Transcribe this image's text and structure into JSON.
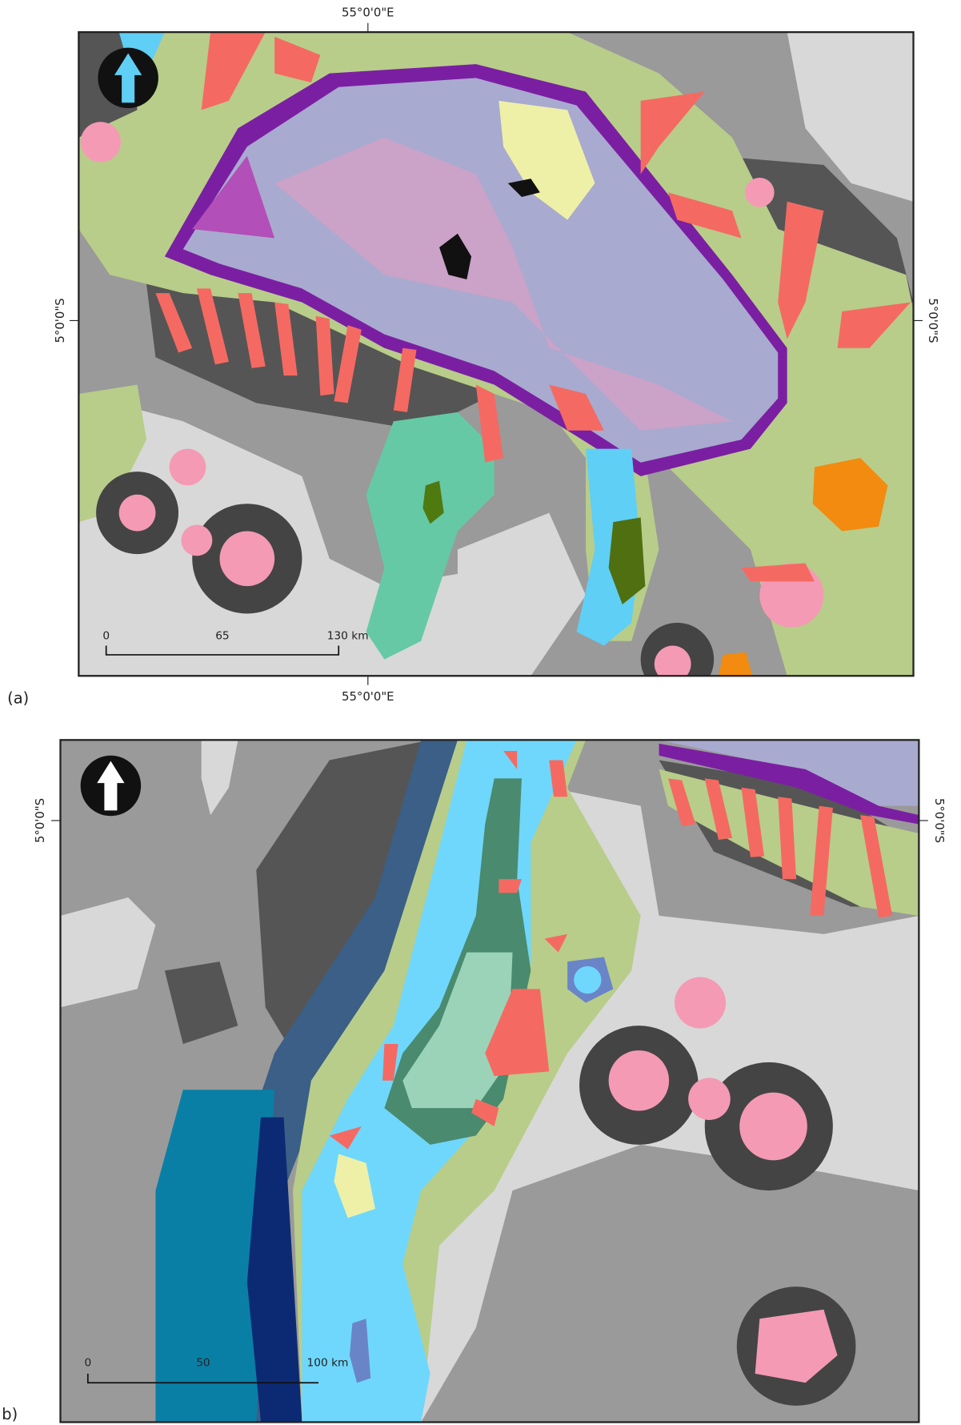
{
  "panels": [
    {
      "label": "(a)",
      "top_label": "55°0'0\"E",
      "bottom_label": "55°0'0\"E",
      "left_label": "5°0'0\"S",
      "right_label": "5°0'0\"S",
      "scale_bar": [
        "0",
        "65",
        "130 km"
      ]
    },
    {
      "label": "b)",
      "left_label": "5°0'0\"S",
      "right_label": "5°0'0\"S",
      "scale_bar": [
        "0",
        "50",
        "100 km"
      ]
    }
  ]
}
